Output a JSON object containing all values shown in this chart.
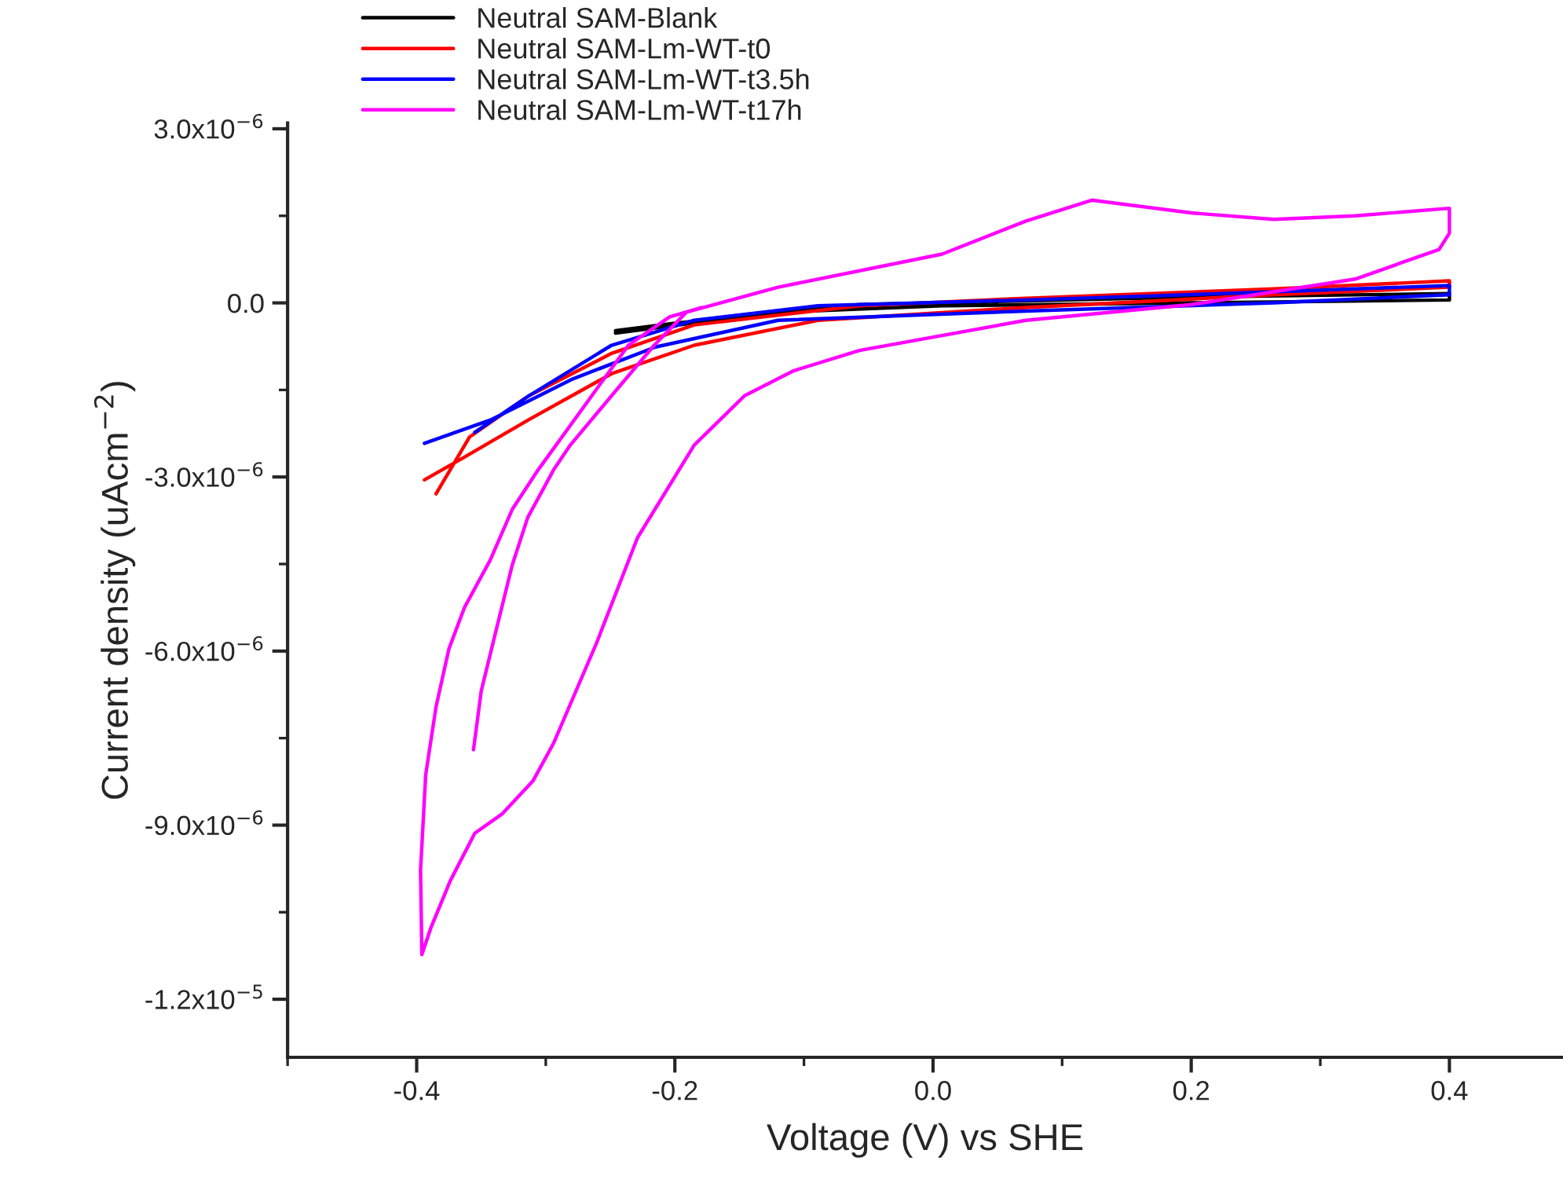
{
  "chart_data": {
    "type": "line",
    "xlabel": "Voltage (V) vs SHE",
    "ylabel": "Current density (uAcm$^{−2}$)",
    "xlim": [
      -0.5,
      0.488
    ],
    "ylim": [
      -1.3e-05,
      3.1e-06
    ],
    "xticks": [
      {
        "value": -0.5,
        "label": null
      },
      -0.4,
      {
        "value": -0.3,
        "label": null
      },
      -0.2,
      {
        "value": -0.1,
        "label": null
      },
      {
        "value": 0.0,
        "label": "0.0"
      },
      {
        "value": 0.1,
        "label": null
      },
      0.2,
      {
        "value": 0.3,
        "label": null
      },
      0.4
    ],
    "yticks": [
      {
        "value": 3e-06,
        "label": "3.0x10$^{−6}$"
      },
      {
        "value": 1.5e-06,
        "label": null
      },
      {
        "value": 0,
        "label": "0.0"
      },
      {
        "value": -1.5e-06,
        "label": null
      },
      {
        "value": -3e-06,
        "label": "-3.0x10$^{−6}$"
      },
      {
        "value": -4.5e-06,
        "label": null
      },
      {
        "value": -6e-06,
        "label": "-6.0x10$^{−6}$"
      },
      {
        "value": -7.5e-06,
        "label": null
      },
      {
        "value": -9e-06,
        "label": "-9.0x10$^{−6}$"
      },
      {
        "value": -1.05e-05,
        "label": null
      },
      {
        "value": -1.2e-05,
        "label": "-1.2x10$^{−5}$"
      }
    ],
    "grid": false,
    "legend": "top left",
    "marker": "none",
    "line_style": "solid",
    "series": [
      {
        "name": "Neutral SAM-Blank",
        "color": "#000000",
        "x": [
          -0.246,
          -0.12,
          0.007,
          0.2,
          0.4,
          0.4,
          0.2,
          -0.057,
          -0.2,
          -0.246
        ],
        "values": [
          -5.2e-07,
          -1.6e-07,
          -5e-08,
          0,
          5e-08,
          1.6e-07,
          1e-07,
          -3e-08,
          -3.5e-07,
          -4.8e-07
        ]
      },
      {
        "name": "Neutral SAM-Lm-WT-t0",
        "color": "#ff0000",
        "x": [
          -0.394,
          -0.364,
          -0.313,
          -0.249,
          -0.185,
          -0.089,
          0.072,
          0.264,
          0.4,
          0.4,
          0.264,
          0.072,
          -0.057,
          -0.185,
          -0.249,
          -0.313,
          -0.359,
          -0.385
        ],
        "values": [
          -3.05e-06,
          -2.67e-06,
          -2.01e-06,
          -1.22e-06,
          -7.3e-07,
          -3e-07,
          -8e-08,
          1.4e-07,
          2.7e-07,
          3.8e-07,
          2.4e-07,
          8e-08,
          -5e-08,
          -3.8e-07,
          -8.7e-07,
          -1.6e-06,
          -2.31e-06,
          -3.29e-06
        ]
      },
      {
        "name": "Neutral SAM-Lm-WT-t3.5h",
        "color": "#0000ff",
        "x": [
          -0.394,
          -0.342,
          -0.279,
          -0.215,
          -0.12,
          0.072,
          0.264,
          0.4,
          0.4,
          0.264,
          0.072,
          -0.089,
          -0.185,
          -0.249,
          -0.313,
          -0.355
        ],
        "values": [
          -2.42e-06,
          -2.01e-06,
          -1.31e-06,
          -7.6e-07,
          -3e-07,
          -1.4e-07,
          0,
          1.4e-07,
          3e-07,
          1.9e-07,
          5e-08,
          -5e-08,
          -3e-07,
          -7.3e-07,
          -1.6e-06,
          -2.23e-06
        ]
      },
      {
        "name": "Neutral SAM-Lm-WT-t17h",
        "color": "#ff00ff",
        "x": [
          -0.356,
          -0.35,
          -0.338,
          -0.326,
          -0.314,
          -0.294,
          -0.281,
          -0.249,
          -0.216,
          -0.191,
          -0.12,
          0.007,
          0.072,
          0.123,
          0.2,
          0.264,
          0.327,
          0.4,
          0.4,
          0.392,
          0.327,
          0.2,
          0.072,
          -0.057,
          -0.108,
          -0.146,
          -0.185,
          -0.229,
          -0.261,
          -0.294,
          -0.31,
          -0.334,
          -0.355,
          -0.374,
          -0.389,
          -0.396,
          -0.397,
          -0.393,
          -0.385,
          -0.375,
          -0.363,
          -0.343,
          -0.326,
          -0.306,
          -0.236,
          -0.204,
          -0.179
        ],
        "values": [
          -7.7e-06,
          -6.69e-06,
          -5.6e-06,
          -4.52e-06,
          -3.7e-06,
          -2.88e-06,
          -2.45e-06,
          -1.6e-06,
          -7.3e-07,
          -1.6e-07,
          2.7e-07,
          8.4e-07,
          1.41e-06,
          1.77e-06,
          1.55e-06,
          1.44e-06,
          1.5e-06,
          1.63e-06,
          1.2e-06,
          9.2e-07,
          4.1e-07,
          -3e-08,
          -3e-07,
          -8.2e-07,
          -1.17e-06,
          -1.6e-06,
          -2.45e-06,
          -4.05e-06,
          -5.88e-06,
          -7.59e-06,
          -8.24e-06,
          -8.81e-06,
          -9.14e-06,
          -9.96e-06,
          -1.077e-05,
          -1.123e-05,
          -9.77e-06,
          -8.13e-06,
          -6.96e-06,
          -5.96e-06,
          -5.25e-06,
          -4.43e-06,
          -3.56e-06,
          -2.88e-06,
          -7.3e-07,
          -2.4e-07,
          -8e-08
        ]
      }
    ]
  }
}
